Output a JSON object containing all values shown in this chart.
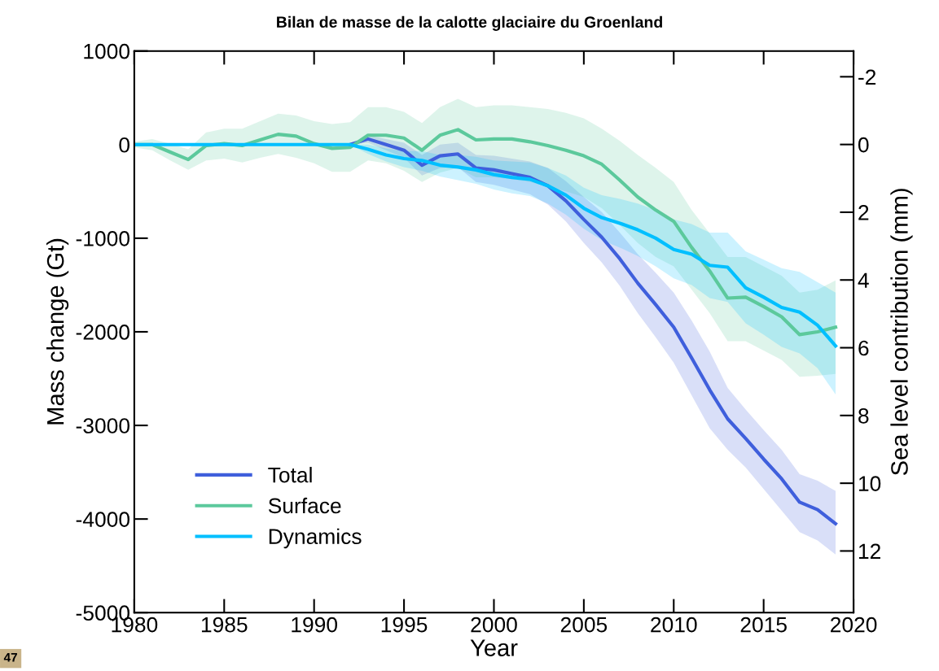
{
  "chart_data": {
    "type": "line",
    "title": "Bilan de masse de la calotte glaciaire du Groenland",
    "xlabel": "Year",
    "ylabel": "Mass change (Gt)",
    "y2label": "Sea level contribution (mm)",
    "x": [
      1980,
      1981,
      1982,
      1983,
      1984,
      1985,
      1986,
      1987,
      1988,
      1989,
      1990,
      1991,
      1992,
      1993,
      1994,
      1995,
      1996,
      1997,
      1998,
      1999,
      2000,
      2001,
      2002,
      2003,
      2004,
      2005,
      2006,
      2007,
      2008,
      2009,
      2010,
      2011,
      2012,
      2013,
      2014,
      2015,
      2016,
      2017,
      2018,
      2019
    ],
    "series": [
      {
        "name": "Total",
        "color": "#3f5fdc",
        "values": [
          null,
          null,
          null,
          null,
          null,
          null,
          null,
          null,
          null,
          null,
          null,
          null,
          0,
          60,
          0,
          -60,
          -220,
          -120,
          -100,
          -250,
          -270,
          -310,
          -350,
          -440,
          -600,
          -800,
          -990,
          -1220,
          -1480,
          -1710,
          -1950,
          -2280,
          -2620,
          -2930,
          -3140,
          -3360,
          -3570,
          -3820,
          -3900,
          -4050
        ],
        "lower": [
          null,
          null,
          null,
          null,
          null,
          null,
          null,
          null,
          null,
          null,
          null,
          null,
          0,
          20,
          -60,
          -140,
          -330,
          -250,
          -240,
          -400,
          -430,
          -480,
          -530,
          -640,
          -820,
          -1050,
          -1260,
          -1510,
          -1800,
          -2060,
          -2330,
          -2680,
          -3030,
          -3260,
          -3450,
          -3680,
          -3910,
          -4140,
          -4230,
          -4380
        ],
        "upper": [
          null,
          null,
          null,
          null,
          null,
          null,
          null,
          null,
          null,
          null,
          null,
          null,
          0,
          100,
          60,
          20,
          -110,
          0,
          20,
          -110,
          -120,
          -150,
          -180,
          -250,
          -390,
          -560,
          -720,
          -940,
          -1170,
          -1370,
          -1580,
          -1880,
          -2210,
          -2600,
          -2830,
          -3050,
          -3260,
          -3520,
          -3590,
          -3700
        ]
      },
      {
        "name": "Surface",
        "color": "#5cc99c",
        "values": [
          0,
          0,
          -80,
          -160,
          -10,
          10,
          -10,
          50,
          110,
          90,
          10,
          -40,
          -30,
          100,
          100,
          70,
          -60,
          100,
          160,
          50,
          60,
          60,
          30,
          -10,
          -60,
          -120,
          -210,
          -380,
          -560,
          -700,
          -820,
          -1100,
          -1350,
          -1640,
          -1630,
          -1730,
          -1840,
          -2030,
          -2000,
          -1950
        ],
        "lower": [
          -30,
          -60,
          -170,
          -270,
          -170,
          -150,
          -190,
          -140,
          -100,
          -140,
          -200,
          -290,
          -290,
          -170,
          -200,
          -280,
          -400,
          -300,
          -250,
          -350,
          -350,
          -370,
          -400,
          -450,
          -500,
          -560,
          -680,
          -860,
          -1050,
          -1200,
          -1300,
          -1550,
          -1800,
          -2100,
          -2100,
          -2200,
          -2300,
          -2480,
          -2470,
          -2450
        ],
        "upper": [
          30,
          60,
          10,
          -50,
          130,
          170,
          170,
          250,
          330,
          310,
          250,
          220,
          240,
          400,
          400,
          350,
          230,
          400,
          490,
          400,
          420,
          420,
          400,
          380,
          340,
          280,
          170,
          40,
          -110,
          -250,
          -400,
          -700,
          -950,
          -1200,
          -1200,
          -1300,
          -1400,
          -1580,
          -1550,
          -1450
        ]
      },
      {
        "name": "Dynamics",
        "color": "#00bfff",
        "values": [
          0,
          0,
          0,
          0,
          0,
          0,
          0,
          0,
          0,
          0,
          0,
          0,
          0,
          -50,
          -110,
          -150,
          -170,
          -220,
          -240,
          -270,
          -320,
          -350,
          -370,
          -440,
          -540,
          -680,
          -780,
          -840,
          -910,
          -1000,
          -1120,
          -1170,
          -1290,
          -1310,
          -1530,
          -1630,
          -1740,
          -1790,
          -1930,
          -2150
        ],
        "lower": [
          0,
          0,
          0,
          0,
          0,
          0,
          0,
          0,
          0,
          0,
          0,
          0,
          0,
          -100,
          -180,
          -240,
          -280,
          -340,
          -380,
          -420,
          -480,
          -520,
          -550,
          -630,
          -750,
          -900,
          -1020,
          -1100,
          -1190,
          -1300,
          -1430,
          -1500,
          -1640,
          -1680,
          -1910,
          -2030,
          -2160,
          -2230,
          -2390,
          -2670
        ],
        "upper": [
          0,
          0,
          0,
          0,
          0,
          0,
          0,
          0,
          0,
          0,
          0,
          0,
          0,
          0,
          -40,
          -70,
          -70,
          -110,
          -110,
          -130,
          -170,
          -180,
          -190,
          -250,
          -330,
          -460,
          -540,
          -580,
          -630,
          -700,
          -800,
          -850,
          -940,
          -940,
          -1140,
          -1230,
          -1320,
          -1360,
          -1470,
          -1580
        ]
      }
    ],
    "xlim": [
      1980,
      2020
    ],
    "xticks": [
      1980,
      1985,
      1990,
      1995,
      2000,
      2005,
      2010,
      2015,
      2020
    ],
    "ylim": [
      -5000,
      1000
    ],
    "yticks": [
      -5000,
      -4000,
      -3000,
      -2000,
      -1000,
      0,
      1000
    ],
    "y2lim": [
      13.82,
      -2.76
    ],
    "y2ticks": [
      -2,
      0,
      2,
      4,
      6,
      8,
      10,
      12
    ],
    "grid": false,
    "legend": "bottom left",
    "marker": "none",
    "line_style": "solid",
    "annotations": [
      "47"
    ]
  }
}
